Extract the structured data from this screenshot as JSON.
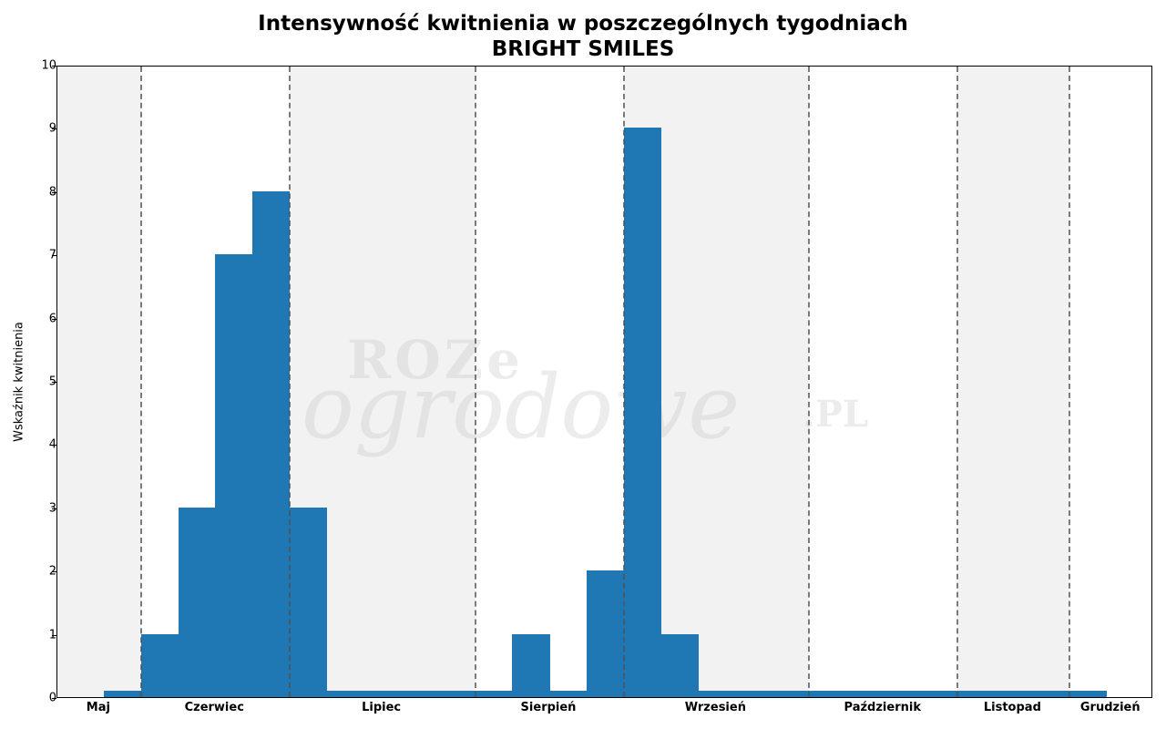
{
  "chart_data": {
    "type": "bar",
    "title": "Intensywność kwitnienia w poszczególnych tygodniach",
    "subtitle": "BRIGHT SMILES",
    "xlabel": "",
    "ylabel": "Wskaźnik kwitnienia",
    "ylim": [
      0,
      10
    ],
    "yticks": [
      0,
      1,
      2,
      3,
      4,
      5,
      6,
      7,
      8,
      9,
      10
    ],
    "grid": false,
    "legend": null,
    "month_labels": [
      "Maj",
      "Czerwiec",
      "Lipiec",
      "Sierpień",
      "Wrzesień",
      "Październik",
      "Listopad",
      "Grudzień"
    ],
    "weeks": [
      {
        "month": "Maj",
        "value": 0.1
      },
      {
        "month": "Czerwiec",
        "value": 1
      },
      {
        "month": "Czerwiec",
        "value": 3
      },
      {
        "month": "Czerwiec",
        "value": 7
      },
      {
        "month": "Czerwiec",
        "value": 8
      },
      {
        "month": "Lipiec",
        "value": 3
      },
      {
        "month": "Lipiec",
        "value": 0.1
      },
      {
        "month": "Lipiec",
        "value": 0.1
      },
      {
        "month": "Lipiec",
        "value": 0.1
      },
      {
        "month": "Lipiec",
        "value": 0.1
      },
      {
        "month": "Sierpień",
        "value": 0.1
      },
      {
        "month": "Sierpień",
        "value": 1
      },
      {
        "month": "Sierpień",
        "value": 0.1
      },
      {
        "month": "Sierpień",
        "value": 2
      },
      {
        "month": "Wrzesień",
        "value": 9
      },
      {
        "month": "Wrzesień",
        "value": 1
      },
      {
        "month": "Wrzesień",
        "value": 0.1
      },
      {
        "month": "Wrzesień",
        "value": 0.1
      },
      {
        "month": "Wrzesień",
        "value": 0.1
      },
      {
        "month": "Październik",
        "value": 0.1
      },
      {
        "month": "Październik",
        "value": 0.1
      },
      {
        "month": "Październik",
        "value": 0.1
      },
      {
        "month": "Październik",
        "value": 0.1
      },
      {
        "month": "Listopad",
        "value": 0.1
      },
      {
        "month": "Listopad",
        "value": 0.1
      },
      {
        "month": "Listopad",
        "value": 0.1
      },
      {
        "month": "Grudzień",
        "value": 0.1
      }
    ],
    "values": [
      0.1,
      1,
      3,
      7,
      8,
      3,
      0.1,
      0.1,
      0.1,
      0.1,
      0.1,
      1,
      0.1,
      2,
      9,
      1,
      0.1,
      0.1,
      0.1,
      0.1,
      0.1,
      0.1,
      0.1,
      0.1,
      0.1,
      0.1,
      0.1
    ],
    "bar_color": "#1f77b4",
    "shaded_months": [
      "Maj",
      "Lipiec",
      "Wrzesień",
      "Listopad"
    ],
    "shade_color": "#f2f2f2",
    "month_dividers": "dashed gray vertical lines between months",
    "watermark": "ROZE ogrodowe.PL"
  },
  "labels": {
    "title_line1": "Intensywność kwitnienia w poszczególnych tygodniach",
    "title_line2": "BRIGHT SMILES",
    "ylabel": "Wskaźnik kwitnienia",
    "watermark_top": "ROZe",
    "watermark_main": "ogrodowe",
    "watermark_suffix": ".PL"
  }
}
